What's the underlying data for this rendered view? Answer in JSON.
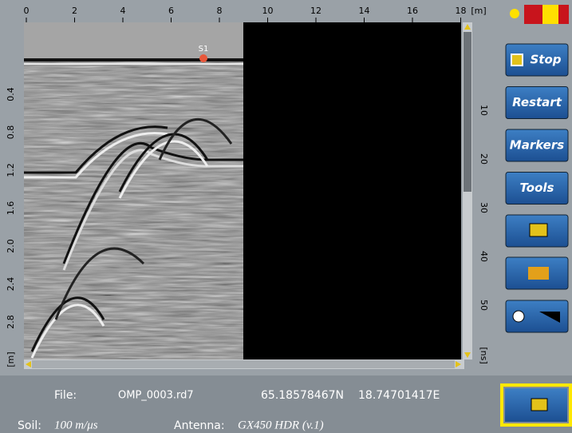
{
  "top_axis": {
    "labels": [
      "0",
      "2",
      "4",
      "6",
      "8",
      "10",
      "12",
      "14",
      "16",
      "18"
    ],
    "unit": "[m]"
  },
  "depth_axis": {
    "labels": [
      "0.4",
      "0.8",
      "1.2",
      "1.6",
      "2.0",
      "2.4",
      "2.8"
    ],
    "unit": "[m]"
  },
  "time_axis": {
    "labels": [
      "10",
      "20",
      "30",
      "40",
      "50"
    ],
    "unit": "[ns]"
  },
  "marker": {
    "label": "S1"
  },
  "buttons": [
    "Stop",
    "Restart",
    "Markers",
    "Tools"
  ],
  "status": {
    "file_label": "File:",
    "file": "OMP_0003.rd7",
    "latitude": "65.18578467N",
    "longitude": "18.74701417E",
    "soil_label": "Soil:",
    "soil": "100 m/μs",
    "antenna_label": "Antenna:",
    "antenna": "GX450 HDR (v.1)"
  }
}
